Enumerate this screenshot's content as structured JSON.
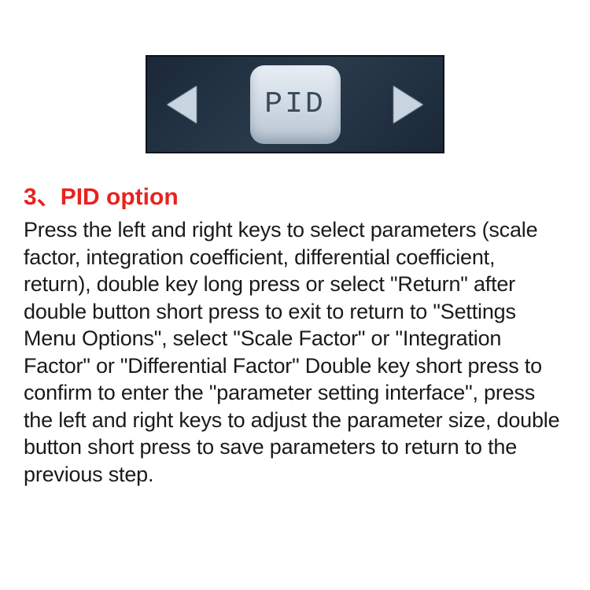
{
  "display": {
    "button_label": "PID",
    "background_color": "#1a2838",
    "arrow_color": "#c8d4e0",
    "button_bg": "#d0dae4",
    "button_text_color": "#3a4a58"
  },
  "heading": {
    "number": "3、",
    "title": "PID option",
    "color": "#e8221f",
    "fontsize": 30
  },
  "body": {
    "text": "Press the left and right keys to select parameters (scale factor, integration coefficient, differential coefficient, return), double key long press or select \"Return\" after double button short press to exit to return to \"Settings Menu Options\", select \"Scale Factor\" or \"Integration Factor\" or \"Differential Factor\" Double key short press to confirm to enter the \"parameter setting interface\", press the left and right keys to adjust the parameter size, double button short press to save parameters to return to the previous step.",
    "color": "#1a1a1a",
    "fontsize": 27
  }
}
